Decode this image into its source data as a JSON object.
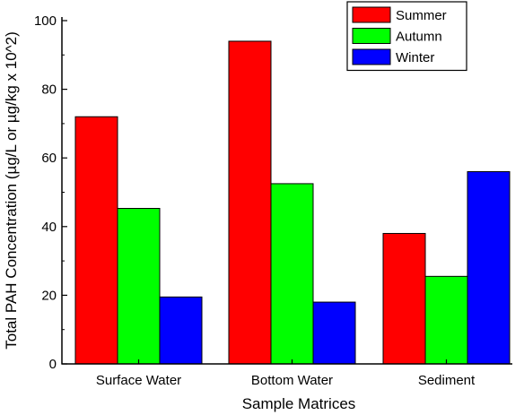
{
  "chart_data": {
    "type": "bar",
    "title": "",
    "xlabel": "Sample Matrices",
    "ylabel": "Total PAH Concentration (µg/L or µg/kg x 10^2)",
    "categories": [
      "Surface Water",
      "Bottom Water",
      "Sediment"
    ],
    "series": [
      {
        "name": "Summer",
        "color": "#ff0000",
        "values": [
          72,
          94,
          38
        ]
      },
      {
        "name": "Autumn",
        "color": "#00ff00",
        "values": [
          45.3,
          52.5,
          25.5
        ]
      },
      {
        "name": "Winter",
        "color": "#0000ff",
        "values": [
          19.5,
          18,
          56
        ]
      }
    ],
    "ylim": [
      0,
      100
    ],
    "yticks": [
      0,
      20,
      40,
      60,
      80,
      100
    ],
    "grid": false,
    "legend_position": "top-right"
  }
}
